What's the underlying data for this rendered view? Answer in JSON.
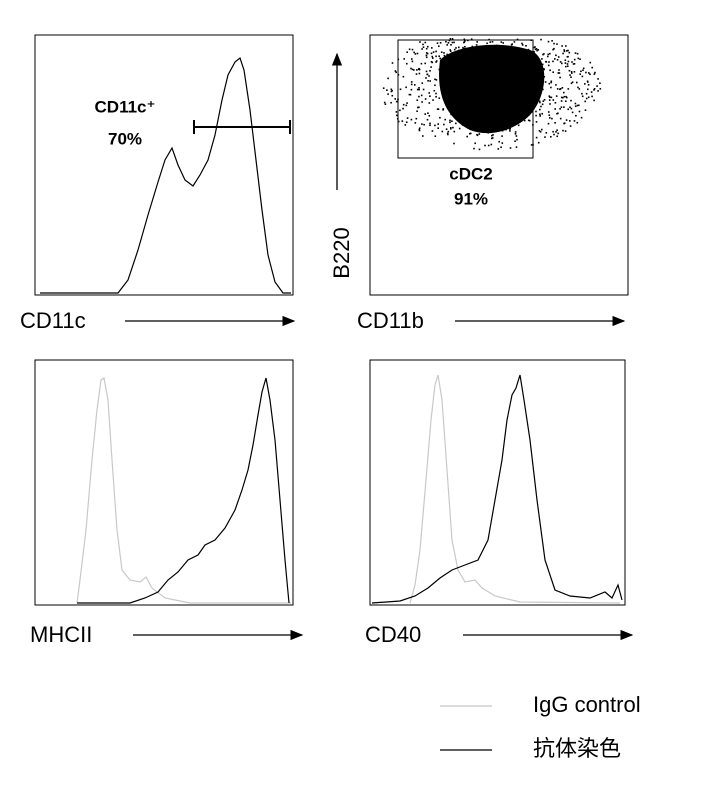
{
  "panels": [
    {
      "x_label": "CD11c",
      "gate_label": "CD11c⁺",
      "gate_percent": "70%"
    },
    {
      "x_label": "CD11b",
      "y_label": "B220",
      "gate_label": "cDC2",
      "gate_percent": "91%"
    },
    {
      "x_label": "MHCII"
    },
    {
      "x_label": "CD40"
    }
  ],
  "legend": [
    {
      "name": "IgG control",
      "color": "#c8c8c8"
    },
    {
      "name": "抗体染色",
      "color": "#000000"
    }
  ]
}
